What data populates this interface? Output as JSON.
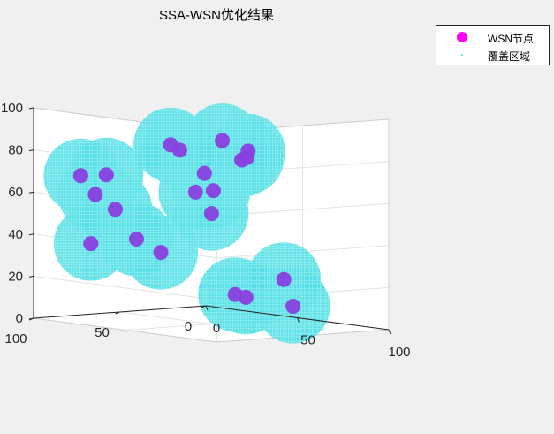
{
  "chart_data": {
    "type": "scatter",
    "title": "SSA-WSN优化结果",
    "xlabel": "",
    "ylabel": "",
    "zlabel": "",
    "xlim": [
      0,
      100
    ],
    "ylim": [
      0,
      100
    ],
    "zlim": [
      0,
      100
    ],
    "x_ticks": [
      "0",
      "50",
      "100"
    ],
    "y_ticks": [
      "0",
      "50",
      "100"
    ],
    "z_ticks": [
      "0",
      "20",
      "40",
      "60",
      "80",
      "100"
    ],
    "grid": true,
    "legend_position": "top-right",
    "series": [
      {
        "name": "WSN节点",
        "color": "#ff00ff",
        "marker": "filled-circle",
        "points": [
          {
            "x": 36,
            "y": 96,
            "z": 72
          },
          {
            "x": 22,
            "y": 96,
            "z": 70
          },
          {
            "x": 30,
            "y": 96,
            "z": 62
          },
          {
            "x": 41,
            "y": 64,
            "z": 85
          },
          {
            "x": 57,
            "y": 51,
            "z": 88
          },
          {
            "x": 46,
            "y": 64,
            "z": 83
          },
          {
            "x": 73,
            "y": 53,
            "z": 85
          },
          {
            "x": 51,
            "y": 55,
            "z": 72
          },
          {
            "x": 62,
            "y": 45,
            "z": 79
          },
          {
            "x": 62,
            "y": 42,
            "z": 80
          },
          {
            "x": 54,
            "y": 53,
            "z": 64
          },
          {
            "x": 49,
            "y": 58,
            "z": 63
          },
          {
            "x": 53,
            "y": 53,
            "z": 53
          },
          {
            "x": 46,
            "y": 75,
            "z": 35
          },
          {
            "x": 23,
            "y": 77,
            "z": 53
          },
          {
            "x": 20,
            "y": 88,
            "z": 37
          },
          {
            "x": 28,
            "y": 70,
            "z": 39
          },
          {
            "x": 49,
            "y": 35,
            "z": 13
          },
          {
            "x": 53,
            "y": 33,
            "z": 12
          },
          {
            "x": 69,
            "y": 28,
            "z": 22
          },
          {
            "x": 58,
            "y": 11,
            "z": 7
          }
        ]
      },
      {
        "name": "覆盖区域",
        "color": "#40e0e8",
        "marker": "point",
        "coverage_radius": 15
      }
    ]
  }
}
